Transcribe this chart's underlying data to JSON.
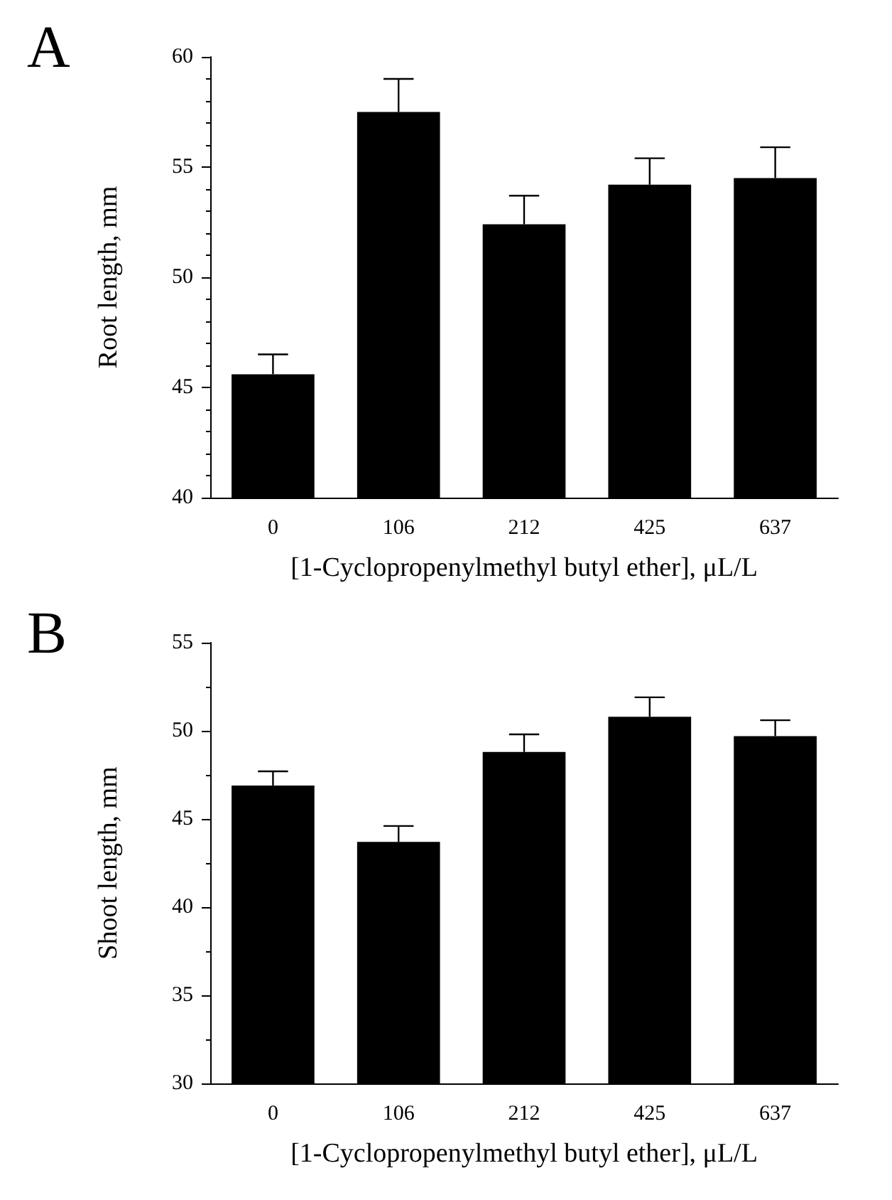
{
  "chart_data": [
    {
      "type": "bar",
      "title": "A",
      "xlabel": "[1-Cyclopropenylmethyl butyl ether], μL/L",
      "ylabel": "Root length, mm",
      "categories": [
        "0",
        "106",
        "212",
        "425",
        "637"
      ],
      "values": [
        45.6,
        57.5,
        52.4,
        54.2,
        54.5
      ],
      "errors": [
        [
          45.6,
          46.5
        ],
        [
          57.5,
          59.0
        ],
        [
          52.4,
          53.7
        ],
        [
          54.2,
          55.4
        ],
        [
          54.5,
          55.9
        ]
      ],
      "color": "#000000",
      "ylim": [
        40,
        60
      ],
      "yticks": [
        40,
        45,
        50,
        55,
        60
      ],
      "grid": false
    },
    {
      "type": "bar",
      "title": "B",
      "xlabel": "[1-Cyclopropenylmethyl butyl ether], μL/L",
      "ylabel": "Shoot length, mm",
      "categories": [
        "0",
        "106",
        "212",
        "425",
        "637"
      ],
      "values": [
        46.9,
        43.7,
        48.8,
        50.8,
        49.7
      ],
      "errors": [
        [
          46.9,
          47.7
        ],
        [
          43.7,
          44.6
        ],
        [
          48.8,
          49.8
        ],
        [
          50.8,
          51.9
        ],
        [
          49.7,
          50.6
        ]
      ],
      "color": "#000000",
      "ylim": [
        30,
        55
      ],
      "yticks": [
        30,
        35,
        40,
        45,
        50,
        55
      ],
      "grid": false
    }
  ]
}
